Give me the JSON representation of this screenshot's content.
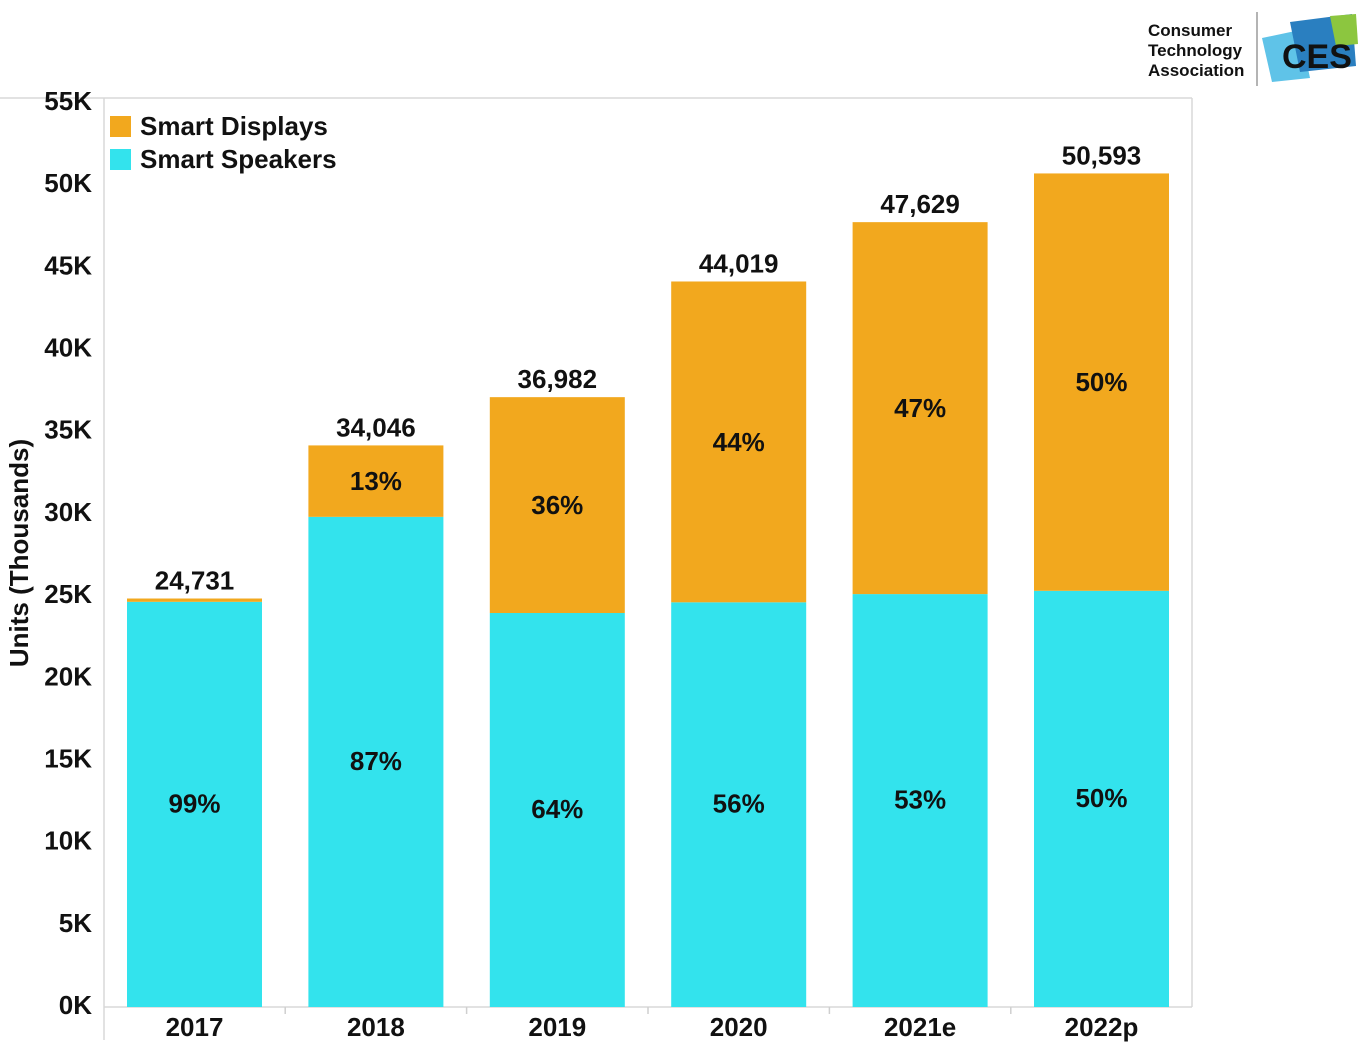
{
  "logo": {
    "lines": [
      "Consumer",
      "Technology",
      "Association"
    ],
    "mark": "CES",
    "colors": {
      "text": "#2a8fc9",
      "blue": "#2a7fc0",
      "green": "#8cc63f",
      "light": "#5fc3e8"
    }
  },
  "colors": {
    "displays": "#f2a81e",
    "speakers": "#33e3ed",
    "axis": "#cfcfcf"
  },
  "chart_data": {
    "type": "bar",
    "stacked": true,
    "title": "",
    "xlabel": "",
    "ylabel": "Units (Thousands)",
    "ylim": [
      0,
      55000
    ],
    "yticks": [
      0,
      5000,
      10000,
      15000,
      20000,
      25000,
      30000,
      35000,
      40000,
      45000,
      50000,
      55000
    ],
    "ytick_labels": [
      "0K",
      "5K",
      "10K",
      "15K",
      "20K",
      "25K",
      "30K",
      "35K",
      "40K",
      "45K",
      "50K",
      "55K"
    ],
    "categories": [
      "2017",
      "2018",
      "2019",
      "2020",
      "2021e",
      "2022p"
    ],
    "totals": [
      24731,
      34046,
      36982,
      44019,
      47629,
      50593
    ],
    "total_labels": [
      "24,731",
      "34,046",
      "36,982",
      "44,019",
      "47,629",
      "50,593"
    ],
    "series": [
      {
        "name": "Smart Speakers",
        "color": "#33e3ed",
        "values": [
          24530,
          29700,
          23850,
          24500,
          25000,
          25200
        ],
        "pct_labels": [
          "99%",
          "87%",
          "64%",
          "56%",
          "53%",
          "50%"
        ]
      },
      {
        "name": "Smart Displays",
        "color": "#f2a81e",
        "values": [
          201,
          4346,
          13132,
          19519,
          22629,
          25393
        ],
        "pct_labels": [
          "",
          "13%",
          "36%",
          "44%",
          "47%",
          "50%"
        ]
      }
    ],
    "legend": [
      "Smart Displays",
      "Smart Speakers"
    ],
    "legend_position": "top-left",
    "grid": false
  }
}
